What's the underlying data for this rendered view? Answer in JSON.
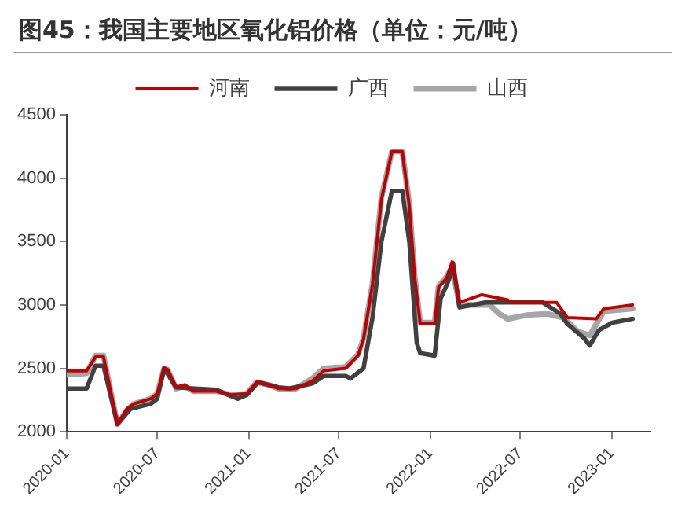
{
  "chart_data": {
    "type": "line",
    "title": "图45：我国主要地区氧化铝价格（单位：元/吨）",
    "xlim": [
      "2020-01-01",
      "2023-03-20"
    ],
    "xticks": [
      "2020-01",
      "2020-07",
      "2021-01",
      "2021-07",
      "2022-01",
      "2022-07",
      "2023-01"
    ],
    "ylim": [
      2000,
      4500
    ],
    "yticks": [
      2000,
      2500,
      3000,
      3500,
      4000,
      4500
    ],
    "legend": "top",
    "marker": "none",
    "line_style": "solid",
    "series": [
      {
        "name": "河南",
        "color": "#c00000",
        "x": [
          "2020-01-01",
          "2020-02-10",
          "2020-02-28",
          "2020-03-15",
          "2020-04-12",
          "2020-05-01",
          "2020-05-15",
          "2020-06-18",
          "2020-07-01",
          "2020-07-15",
          "2020-07-22",
          "2020-08-08",
          "2020-08-25",
          "2020-09-12",
          "2020-10-28",
          "2020-11-27",
          "2020-12-28",
          "2021-01-17",
          "2021-02-10",
          "2021-03-02",
          "2021-04-06",
          "2021-05-09",
          "2021-06-01",
          "2021-07-15",
          "2021-08-09",
          "2021-08-20",
          "2021-09-07",
          "2021-09-25",
          "2021-10-16",
          "2021-11-06",
          "2021-11-20",
          "2021-12-01",
          "2021-12-12",
          "2022-01-10",
          "2022-01-18",
          "2022-02-03",
          "2022-02-14",
          "2022-03-01",
          "2022-04-15",
          "2022-06-06",
          "2022-06-12",
          "2022-09-12",
          "2022-10-04",
          "2022-12-01",
          "2022-12-16",
          "2023-02-12"
        ],
        "values": [
          2480,
          2480,
          2590,
          2590,
          2060,
          2180,
          2220,
          2260,
          2300,
          2500,
          2490,
          2350,
          2370,
          2320,
          2320,
          2290,
          2300,
          2390,
          2370,
          2340,
          2340,
          2400,
          2480,
          2500,
          2600,
          2730,
          3160,
          3830,
          4210,
          4210,
          3780,
          3210,
          2850,
          2850,
          3140,
          3210,
          3340,
          3020,
          3080,
          3040,
          3020,
          3020,
          2900,
          2890,
          2970,
          3000
        ]
      },
      {
        "name": "广西",
        "color": "#404040",
        "x": [
          "2020-01-01",
          "2020-02-10",
          "2020-02-28",
          "2020-03-15",
          "2020-04-12",
          "2020-05-08",
          "2020-06-18",
          "2020-07-01",
          "2020-07-15",
          "2020-08-08",
          "2020-10-28",
          "2020-11-27",
          "2020-12-10",
          "2020-12-28",
          "2021-01-20",
          "2021-03-02",
          "2021-03-24",
          "2021-05-09",
          "2021-06-01",
          "2021-07-15",
          "2021-07-25",
          "2021-08-20",
          "2021-09-07",
          "2021-09-25",
          "2021-10-16",
          "2021-11-06",
          "2021-11-20",
          "2021-12-05",
          "2021-12-12",
          "2022-01-10",
          "2022-01-22",
          "2022-02-08",
          "2022-02-16",
          "2022-03-01",
          "2022-04-22",
          "2022-08-15",
          "2022-09-20",
          "2022-10-04",
          "2022-11-06",
          "2022-11-18",
          "2022-12-06",
          "2023-01-02",
          "2023-02-12"
        ],
        "values": [
          2340,
          2340,
          2520,
          2520,
          2060,
          2180,
          2220,
          2260,
          2500,
          2350,
          2330,
          2280,
          2260,
          2290,
          2390,
          2350,
          2340,
          2380,
          2440,
          2440,
          2420,
          2500,
          2900,
          3500,
          3900,
          3900,
          3500,
          2700,
          2620,
          2600,
          3050,
          3200,
          3330,
          2980,
          3020,
          3020,
          2930,
          2850,
          2740,
          2680,
          2800,
          2860,
          2890
        ]
      },
      {
        "name": "山西",
        "color": "#a6a6a6",
        "x": [
          "2020-01-01",
          "2020-02-10",
          "2020-02-28",
          "2020-03-15",
          "2020-04-12",
          "2020-05-01",
          "2020-05-15",
          "2020-06-18",
          "2020-07-01",
          "2020-07-15",
          "2020-07-22",
          "2020-08-08",
          "2020-08-25",
          "2020-09-12",
          "2020-10-28",
          "2020-11-27",
          "2020-12-28",
          "2021-01-17",
          "2021-02-10",
          "2021-03-02",
          "2021-04-06",
          "2021-05-09",
          "2021-06-01",
          "2021-07-15",
          "2021-08-09",
          "2021-08-20",
          "2021-09-07",
          "2021-09-25",
          "2021-10-16",
          "2021-11-06",
          "2021-11-20",
          "2021-12-01",
          "2021-12-12",
          "2022-01-10",
          "2022-01-18",
          "2022-02-03",
          "2022-02-14",
          "2022-03-01",
          "2022-05-01",
          "2022-05-20",
          "2022-06-06",
          "2022-07-15",
          "2022-08-25",
          "2022-09-25",
          "2022-10-25",
          "2022-11-18",
          "2022-12-16",
          "2023-02-12"
        ],
        "values": [
          2450,
          2460,
          2600,
          2600,
          2060,
          2170,
          2220,
          2260,
          2300,
          2500,
          2490,
          2340,
          2360,
          2320,
          2320,
          2290,
          2300,
          2390,
          2370,
          2340,
          2340,
          2420,
          2500,
          2510,
          2610,
          2740,
          3170,
          3850,
          4210,
          4210,
          3800,
          3220,
          2860,
          2860,
          3150,
          3220,
          3300,
          3000,
          3000,
          2930,
          2890,
          2920,
          2930,
          2900,
          2790,
          2760,
          2950,
          2970
        ]
      }
    ]
  }
}
